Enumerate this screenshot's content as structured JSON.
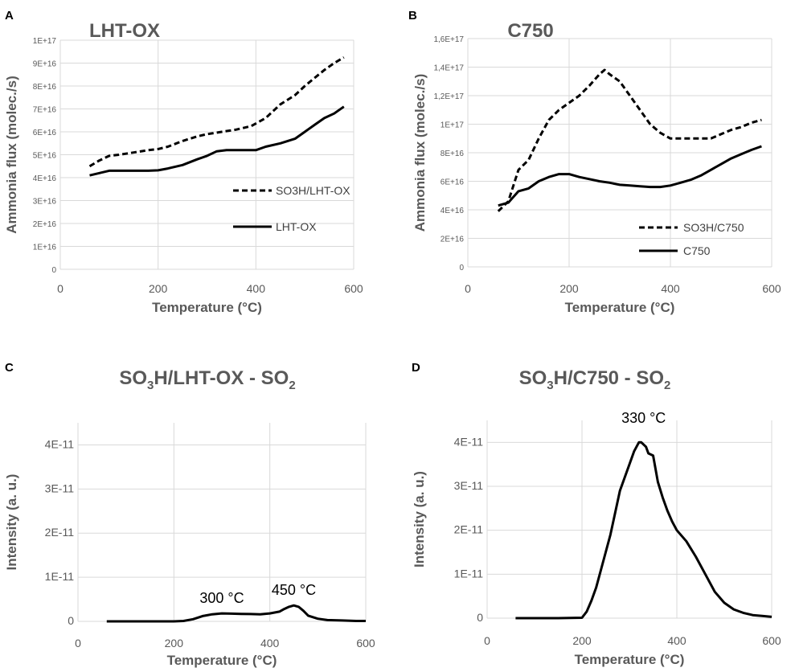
{
  "chart_data": [
    {
      "panel": "A",
      "type": "line",
      "title": "LHT-OX",
      "xlabel": "Temperature (°C)",
      "ylabel": "Ammonia flux (molec./s)",
      "xlim": [
        0,
        600
      ],
      "ylim": [
        0,
        1e+17
      ],
      "x_ticks": [
        "0",
        "200",
        "400",
        "600"
      ],
      "y_ticks": [
        "0",
        "1E+16",
        "2E+16",
        "3E+16",
        "4E+16",
        "5E+16",
        "6E+16",
        "7E+16",
        "8E+16",
        "9E+16",
        "1E+17"
      ],
      "legend": [
        "SO3H/LHT-OX",
        "LHT-OX"
      ],
      "series": [
        {
          "name": "SO3H/LHT-OX",
          "style": "dashed",
          "x": [
            60,
            80,
            100,
            120,
            150,
            180,
            200,
            220,
            250,
            280,
            300,
            330,
            360,
            390,
            420,
            450,
            480,
            500,
            520,
            540,
            560,
            580
          ],
          "y": [
            4.5e+16,
            4.75e+16,
            4.95e+16,
            5e+16,
            5.1e+16,
            5.2e+16,
            5.25e+16,
            5.35e+16,
            5.6e+16,
            5.8e+16,
            5.9e+16,
            6e+16,
            6.1e+16,
            6.25e+16,
            6.6e+16,
            7.2e+16,
            7.6e+16,
            8e+16,
            8.35e+16,
            8.7e+16,
            9e+16,
            9.25e+16
          ]
        },
        {
          "name": "LHT-OX",
          "style": "solid",
          "x": [
            60,
            80,
            100,
            120,
            150,
            180,
            200,
            220,
            250,
            280,
            300,
            320,
            340,
            360,
            380,
            400,
            420,
            450,
            480,
            500,
            520,
            540,
            560,
            580
          ],
          "y": [
            4.1e+16,
            4.2e+16,
            4.3e+16,
            4.3e+16,
            4.3e+16,
            4.3e+16,
            4.32e+16,
            4.4e+16,
            4.55e+16,
            4.8e+16,
            4.95e+16,
            5.15e+16,
            5.2e+16,
            5.2e+16,
            5.2e+16,
            5.2e+16,
            5.35e+16,
            5.5e+16,
            5.7e+16,
            6e+16,
            6.3e+16,
            6.6e+16,
            6.8e+16,
            7.1e+16
          ]
        }
      ]
    },
    {
      "panel": "B",
      "type": "line",
      "title": "C750",
      "xlabel": "Temperature (°C)",
      "ylabel": "Ammonia flux (molec./s)",
      "xlim": [
        0,
        600
      ],
      "ylim": [
        0,
        1.6e+17
      ],
      "x_ticks": [
        "0",
        "200",
        "400",
        "600"
      ],
      "y_ticks": [
        "0",
        "2E+16",
        "4E+16",
        "6E+16",
        "8E+16",
        "1E+17",
        "1,2E+17",
        "1,4E+17",
        "1,6E+17"
      ],
      "legend": [
        "SO3H/C750",
        "C750"
      ],
      "series": [
        {
          "name": "SO3H/C750",
          "style": "dashed",
          "x": [
            60,
            80,
            100,
            120,
            140,
            160,
            180,
            200,
            220,
            240,
            260,
            270,
            280,
            300,
            320,
            340,
            360,
            380,
            400,
            420,
            440,
            460,
            480,
            500,
            520,
            540,
            560,
            580
          ],
          "y": [
            3.9e+16,
            4.6e+16,
            6.8e+16,
            7.5e+16,
            9e+16,
            1.03e+17,
            1.1e+17,
            1.15e+17,
            1.2e+17,
            1.27e+17,
            1.35e+17,
            1.38e+17,
            1.35e+17,
            1.3e+17,
            1.2e+17,
            1.1e+17,
            1e+17,
            9.4e+16,
            9e+16,
            9e+16,
            9e+16,
            9e+16,
            9e+16,
            9.3e+16,
            9.6e+16,
            9.8e+16,
            1.01e+17,
            1.03e+17
          ]
        },
        {
          "name": "C750",
          "style": "solid",
          "x": [
            60,
            80,
            100,
            120,
            140,
            160,
            180,
            200,
            220,
            240,
            260,
            280,
            300,
            320,
            340,
            360,
            380,
            400,
            420,
            440,
            460,
            480,
            500,
            520,
            540,
            560,
            580
          ],
          "y": [
            4.3e+16,
            4.5e+16,
            5.3e+16,
            5.5e+16,
            6e+16,
            6.3e+16,
            6.5e+16,
            6.5e+16,
            6.3e+16,
            6.15e+16,
            6e+16,
            5.9e+16,
            5.75e+16,
            5.7e+16,
            5.65e+16,
            5.6e+16,
            5.6e+16,
            5.7e+16,
            5.9e+16,
            6.1e+16,
            6.4e+16,
            6.8e+16,
            7.2e+16,
            7.6e+16,
            7.9e+16,
            8.2e+16,
            8.45e+16
          ]
        }
      ]
    },
    {
      "panel": "C",
      "type": "line",
      "title_main": "SO",
      "title_sub": "3",
      "title_mid": "H/LHT-OX - SO",
      "title_sub2": "2",
      "xlabel": "Temperature (°C)",
      "ylabel": "Intensity (a. u.)",
      "xlim": [
        0,
        600
      ],
      "ylim": [
        0,
        4.5e-11
      ],
      "x_ticks": [
        "0",
        "200",
        "400",
        "600"
      ],
      "y_ticks": [
        "0",
        "1E-11",
        "2E-11",
        "3E-11",
        "4E-11"
      ],
      "annotations": [
        {
          "text": "300 °C",
          "x": 300,
          "y": 2.7e-12
        },
        {
          "text": "450 °C",
          "x": 450,
          "y": 4.6e-12
        }
      ],
      "series": [
        {
          "name": "SO2",
          "style": "solid",
          "x": [
            60,
            100,
            150,
            200,
            220,
            240,
            260,
            280,
            300,
            320,
            340,
            360,
            380,
            400,
            420,
            430,
            440,
            450,
            460,
            470,
            480,
            500,
            520,
            550,
            580,
            600
          ],
          "y": [
            0,
            0,
            0,
            0,
            1e-13,
            5e-13,
            1.2e-12,
            1.6e-12,
            1.8e-12,
            1.75e-12,
            1.7e-12,
            1.65e-12,
            1.6e-12,
            1.8e-12,
            2.2e-12,
            2.8e-12,
            3.3e-12,
            3.6e-12,
            3.3e-12,
            2.4e-12,
            1.3e-12,
            6e-13,
            3e-13,
            2e-13,
            1e-13,
            1e-13
          ]
        }
      ]
    },
    {
      "panel": "D",
      "type": "line",
      "title_main": "SO",
      "title_sub": "3",
      "title_mid": "H/C750 - SO",
      "title_sub2": "2",
      "xlabel": "Temperature (°C)",
      "ylabel": "Intensity (a. u.)",
      "xlim": [
        0,
        600
      ],
      "ylim": [
        0,
        4.5e-11
      ],
      "x_ticks": [
        "0",
        "200",
        "400",
        "600"
      ],
      "y_ticks": [
        "0",
        "1E-11",
        "2E-11",
        "3E-11",
        "4E-11"
      ],
      "annotations": [
        {
          "text": "330 °C",
          "x": 330,
          "y": 4.3e-11
        }
      ],
      "series": [
        {
          "name": "SO2",
          "style": "solid",
          "x": [
            60,
            100,
            150,
            200,
            210,
            220,
            230,
            240,
            250,
            260,
            270,
            280,
            290,
            300,
            310,
            320,
            325,
            330,
            335,
            340,
            350,
            360,
            370,
            380,
            390,
            400,
            420,
            440,
            460,
            480,
            500,
            520,
            540,
            560,
            580,
            600
          ],
          "y": [
            0,
            0,
            0,
            1e-13,
            1.5e-12,
            4e-12,
            7e-12,
            1.1e-11,
            1.5e-11,
            1.9e-11,
            2.4e-11,
            2.9e-11,
            3.2e-11,
            3.5e-11,
            3.8e-11,
            4e-11,
            4e-11,
            3.95e-11,
            3.9e-11,
            3.75e-11,
            3.7e-11,
            3.1e-11,
            2.75e-11,
            2.45e-11,
            2.2e-11,
            2e-11,
            1.75e-11,
            1.4e-11,
            1e-11,
            6e-12,
            3.5e-12,
            2e-12,
            1.2e-12,
            7e-13,
            5e-13,
            3e-13
          ]
        }
      ]
    }
  ]
}
